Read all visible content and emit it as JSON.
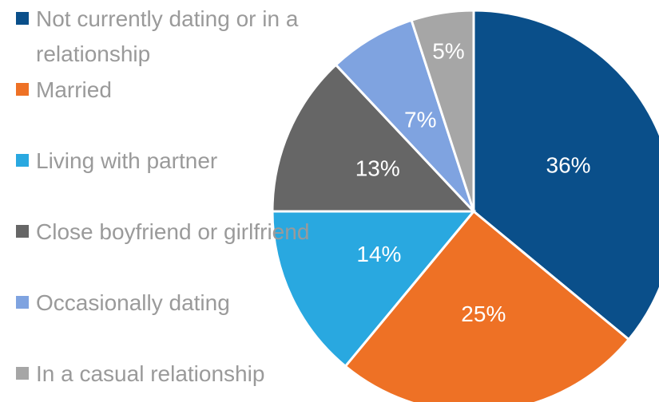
{
  "chart_data": {
    "type": "pie",
    "categories": [
      "Not currently dating or in a relationship",
      "Married",
      "Living with partner",
      "Close boyfriend or girlfriend",
      "Occasionally dating",
      "In a casual relationship"
    ],
    "values": [
      36,
      25,
      14,
      13,
      7,
      5
    ],
    "value_labels": [
      "36%",
      "25%",
      "14%",
      "13%",
      "7%",
      "5%"
    ],
    "colors": [
      "#0a4f8a",
      "#ee7125",
      "#29a8e0",
      "#666666",
      "#7fa3e0",
      "#a6a6a6"
    ],
    "legend": "left"
  }
}
